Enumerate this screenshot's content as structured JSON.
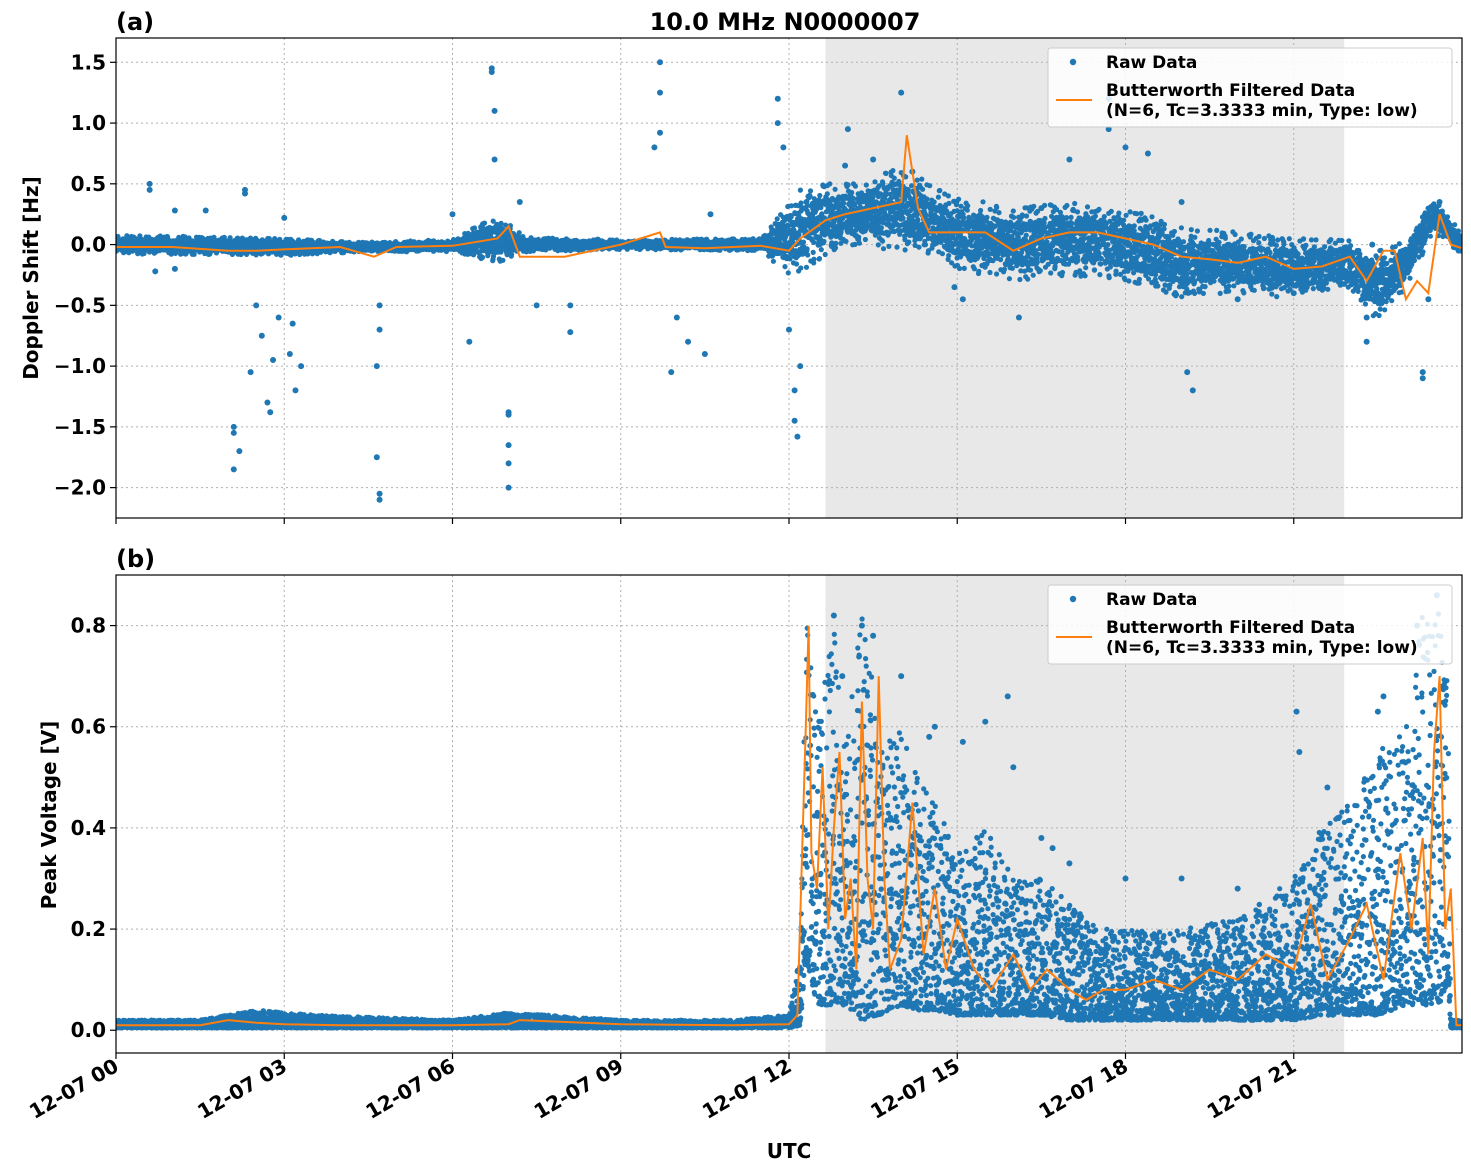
{
  "figure": {
    "title": "10.0 MHz N0000007",
    "xlabel": "UTC",
    "x_ticks": [
      "12-07 00",
      "12-07 03",
      "12-07 06",
      "12-07 09",
      "12-07 12",
      "12-07 15",
      "12-07 18",
      "12-07 21"
    ],
    "x_tick_hours": [
      0,
      3,
      6,
      9,
      12,
      15,
      18,
      21
    ],
    "xlim_hours": [
      0,
      24
    ],
    "shaded_span_hours": [
      12.65,
      21.9
    ],
    "colors": {
      "raw": "#1f77b4",
      "filtered": "#ff7f0e",
      "shade": "#e8e8e8"
    }
  },
  "chart_data": [
    {
      "type": "scatter",
      "panel_label": "(a)",
      "ylabel": "Doppler Shift [Hz]",
      "ylim": [
        -2.25,
        1.7
      ],
      "y_ticks": [
        1.5,
        1.0,
        0.5,
        0.0,
        -0.5,
        -1.0,
        -1.5,
        -2.0
      ],
      "y_tick_labels": [
        "1.5",
        "1.0",
        "0.5",
        "0.0",
        "−0.5",
        "−1.0",
        "−1.5",
        "−2.0"
      ],
      "grid": true,
      "legend_position": "top-right",
      "legend": [
        "Raw Data",
        "Butterworth Filtered Data",
        "(N=6, Tc=3.3333 min, Type: low)"
      ],
      "series": [
        {
          "name": "Raw Data",
          "style": "points",
          "band": {
            "x": [
              0,
              3,
              4.5,
              6,
              6.8,
              7.3,
              9,
              11.5,
              12,
              12.3,
              12.65,
              13,
              14,
              14.5,
              15,
              16,
              17,
              18,
              19,
              20,
              21,
              22,
              22.5,
              23,
              23.5,
              24
            ],
            "center": [
              0,
              -0.02,
              -0.02,
              -0.01,
              0.05,
              0,
              0,
              0,
              0.05,
              0.15,
              0.2,
              0.25,
              0.3,
              0.2,
              0.1,
              0,
              0.05,
              0.0,
              -0.15,
              -0.15,
              -0.2,
              -0.15,
              -0.35,
              -0.15,
              0.25,
              0
            ],
            "spread": [
              0.08,
              0.07,
              0.04,
              0.05,
              0.2,
              0.06,
              0.04,
              0.05,
              0.3,
              0.35,
              0.3,
              0.25,
              0.35,
              0.3,
              0.3,
              0.3,
              0.3,
              0.3,
              0.3,
              0.25,
              0.25,
              0.2,
              0.3,
              0.2,
              0.15,
              0.08
            ]
          },
          "outliers": [
            [
              0.6,
              0.5
            ],
            [
              0.6,
              0.45
            ],
            [
              0.7,
              -0.22
            ],
            [
              1.05,
              0.28
            ],
            [
              1.05,
              -0.2
            ],
            [
              1.6,
              0.28
            ],
            [
              2.1,
              -1.85
            ],
            [
              2.1,
              -1.55
            ],
            [
              2.1,
              -1.5
            ],
            [
              2.2,
              -1.7
            ],
            [
              2.3,
              0.42
            ],
            [
              2.3,
              0.45
            ],
            [
              2.4,
              -1.05
            ],
            [
              2.5,
              -0.5
            ],
            [
              2.6,
              -0.75
            ],
            [
              2.7,
              -1.3
            ],
            [
              2.8,
              -0.95
            ],
            [
              2.9,
              -0.6
            ],
            [
              3.0,
              0.22
            ],
            [
              3.1,
              -0.9
            ],
            [
              3.2,
              -1.2
            ],
            [
              3.3,
              -1.0
            ],
            [
              2.75,
              -1.38
            ],
            [
              3.15,
              -0.65
            ],
            [
              4.65,
              -1.75
            ],
            [
              4.7,
              -2.05
            ],
            [
              4.7,
              -2.1
            ],
            [
              4.65,
              -1.0
            ],
            [
              4.7,
              -0.7
            ],
            [
              4.7,
              -0.5
            ],
            [
              6.0,
              0.25
            ],
            [
              6.3,
              -0.8
            ],
            [
              6.7,
              1.45
            ],
            [
              6.7,
              1.42
            ],
            [
              6.75,
              1.1
            ],
            [
              6.75,
              0.7
            ],
            [
              7.0,
              -1.4
            ],
            [
              7.0,
              -1.65
            ],
            [
              7.0,
              -1.8
            ],
            [
              7.0,
              -2.0
            ],
            [
              7.0,
              -1.38
            ],
            [
              7.2,
              0.35
            ],
            [
              7.5,
              -0.5
            ],
            [
              8.1,
              -0.5
            ],
            [
              8.1,
              -0.72
            ],
            [
              9.7,
              1.5
            ],
            [
              9.7,
              1.25
            ],
            [
              9.7,
              0.92
            ],
            [
              9.6,
              0.8
            ],
            [
              9.9,
              -1.05
            ],
            [
              10.0,
              -0.6
            ],
            [
              10.2,
              -0.8
            ],
            [
              10.5,
              -0.9
            ],
            [
              10.6,
              0.25
            ],
            [
              11.8,
              1.2
            ],
            [
              11.8,
              1.0
            ],
            [
              11.9,
              0.8
            ],
            [
              12.1,
              -1.2
            ],
            [
              12.1,
              -1.45
            ],
            [
              12.15,
              -1.58
            ],
            [
              12.0,
              -0.7
            ],
            [
              12.2,
              -1.0
            ],
            [
              13.0,
              0.65
            ],
            [
              13.05,
              0.95
            ],
            [
              13.5,
              0.7
            ],
            [
              14.0,
              1.25
            ],
            [
              14.2,
              0.6
            ],
            [
              14.95,
              -0.35
            ],
            [
              15.1,
              -0.45
            ],
            [
              16.1,
              -0.6
            ],
            [
              16.5,
              0.3
            ],
            [
              17.0,
              0.7
            ],
            [
              17.7,
              1.2
            ],
            [
              17.7,
              0.95
            ],
            [
              18.0,
              0.8
            ],
            [
              18.4,
              0.75
            ],
            [
              19.0,
              0.35
            ],
            [
              19.1,
              -1.05
            ],
            [
              19.2,
              -1.2
            ],
            [
              20.0,
              -0.45
            ],
            [
              21.0,
              -0.4
            ],
            [
              22.3,
              -0.6
            ],
            [
              22.3,
              -0.8
            ],
            [
              22.4,
              0.0
            ],
            [
              23.3,
              -1.05
            ],
            [
              23.3,
              -1.1
            ],
            [
              23.4,
              -0.45
            ],
            [
              23.6,
              0.35
            ]
          ]
        },
        {
          "name": "Butterworth Filtered Data",
          "style": "line",
          "x": [
            0,
            1,
            2,
            2.5,
            3,
            4,
            4.6,
            5,
            6,
            6.8,
            7.0,
            7.2,
            8.0,
            9,
            9.7,
            9.8,
            10.5,
            11.5,
            12.0,
            12.2,
            12.5,
            12.65,
            13,
            13.5,
            14.0,
            14.1,
            14.3,
            14.5,
            15,
            15.5,
            16,
            16.5,
            17,
            17.5,
            18,
            18.5,
            19,
            19.5,
            20,
            20.5,
            21,
            21.5,
            22,
            22.3,
            22.6,
            22.8,
            23.0,
            23.2,
            23.4,
            23.6,
            23.8,
            24
          ],
          "y": [
            -0.02,
            -0.02,
            -0.05,
            -0.05,
            -0.04,
            -0.02,
            -0.1,
            -0.02,
            -0.01,
            0.05,
            0.15,
            -0.1,
            -0.1,
            0.0,
            0.1,
            -0.02,
            -0.03,
            -0.01,
            -0.05,
            0.05,
            0.15,
            0.2,
            0.25,
            0.3,
            0.35,
            0.9,
            0.3,
            0.1,
            0.1,
            0.1,
            -0.05,
            0.05,
            0.1,
            0.1,
            0.05,
            0.0,
            -0.1,
            -0.12,
            -0.15,
            -0.1,
            -0.2,
            -0.18,
            -0.1,
            -0.3,
            -0.05,
            -0.05,
            -0.45,
            -0.3,
            -0.4,
            0.25,
            0.0,
            -0.03
          ]
        }
      ]
    },
    {
      "type": "scatter",
      "panel_label": "(b)",
      "ylabel": "Peak Voltage [V]",
      "ylim": [
        -0.045,
        0.9
      ],
      "y_ticks": [
        0.0,
        0.2,
        0.4,
        0.6,
        0.8
      ],
      "y_tick_labels": [
        "0.0",
        "0.2",
        "0.4",
        "0.6",
        "0.8"
      ],
      "grid": true,
      "legend_position": "top-right",
      "legend": [
        "Raw Data",
        "Butterworth Filtered Data",
        "(N=6, Tc=3.3333 min, Type: low)"
      ],
      "series": [
        {
          "name": "Raw Data",
          "style": "points",
          "band": {
            "x": [
              0,
              1.5,
              2.5,
              3.5,
              6,
              7,
              9,
              11,
              12.0,
              12.2,
              12.3,
              12.5,
              12.8,
              13.0,
              13.3,
              13.6,
              14.0,
              14.3,
              14.6,
              15,
              15.5,
              16,
              16.5,
              17,
              17.5,
              18,
              19,
              20,
              21,
              21.5,
              22,
              22.5,
              23,
              23.3,
              23.6,
              23.75,
              23.8,
              24
            ],
            "low": [
              0.005,
              0.005,
              0.005,
              0.005,
              0.005,
              0.005,
              0.005,
              0.005,
              0.005,
              0.01,
              0.15,
              0.05,
              0.05,
              0.05,
              0.02,
              0.03,
              0.05,
              0.04,
              0.04,
              0.03,
              0.03,
              0.03,
              0.03,
              0.02,
              0.02,
              0.02,
              0.02,
              0.02,
              0.02,
              0.03,
              0.03,
              0.03,
              0.05,
              0.05,
              0.05,
              0.1,
              0.005,
              0.005
            ],
            "high": [
              0.02,
              0.02,
              0.04,
              0.03,
              0.02,
              0.035,
              0.02,
              0.02,
              0.03,
              0.15,
              0.84,
              0.6,
              0.8,
              0.55,
              0.84,
              0.6,
              0.6,
              0.5,
              0.45,
              0.35,
              0.4,
              0.3,
              0.3,
              0.25,
              0.2,
              0.2,
              0.2,
              0.22,
              0.3,
              0.4,
              0.45,
              0.55,
              0.6,
              0.85,
              0.85,
              0.7,
              0.02,
              0.02
            ]
          },
          "outliers": [
            [
              12.8,
              0.82
            ],
            [
              13.3,
              0.8
            ],
            [
              14.5,
              0.58
            ],
            [
              14.6,
              0.6
            ],
            [
              15.1,
              0.57
            ],
            [
              15.5,
              0.61
            ],
            [
              16.0,
              0.52
            ],
            [
              16.5,
              0.38
            ],
            [
              16.7,
              0.36
            ],
            [
              17.0,
              0.33
            ],
            [
              18.0,
              0.3
            ],
            [
              19.0,
              0.3
            ],
            [
              20.0,
              0.28
            ],
            [
              21.05,
              0.63
            ],
            [
              21.1,
              0.55
            ],
            [
              21.6,
              0.48
            ],
            [
              22.5,
              0.63
            ],
            [
              22.6,
              0.66
            ],
            [
              15.9,
              0.66
            ],
            [
              14.0,
              0.7
            ],
            [
              12.95,
              0.7
            ],
            [
              13.5,
              0.78
            ],
            [
              23.55,
              0.86
            ],
            [
              23.2,
              0.8
            ]
          ]
        },
        {
          "name": "Butterworth Filtered Data",
          "style": "line",
          "x": [
            0,
            1.5,
            2.0,
            2.5,
            3.0,
            4,
            6,
            7,
            7.2,
            9,
            11,
            12.0,
            12.15,
            12.3,
            12.35,
            12.4,
            12.5,
            12.6,
            12.7,
            12.8,
            12.9,
            13.0,
            13.1,
            13.2,
            13.3,
            13.4,
            13.5,
            13.6,
            13.7,
            13.8,
            14.0,
            14.2,
            14.4,
            14.6,
            14.8,
            15.0,
            15.3,
            15.6,
            16.0,
            16.3,
            16.6,
            17.0,
            17.3,
            17.6,
            18.0,
            18.5,
            19.0,
            19.5,
            20.0,
            20.5,
            21.0,
            21.3,
            21.6,
            22.0,
            22.3,
            22.6,
            22.9,
            23.1,
            23.3,
            23.4,
            23.5,
            23.6,
            23.7,
            23.8,
            23.9,
            24
          ],
          "y": [
            0.01,
            0.01,
            0.02,
            0.015,
            0.012,
            0.01,
            0.01,
            0.012,
            0.02,
            0.012,
            0.01,
            0.012,
            0.03,
            0.6,
            0.8,
            0.35,
            0.28,
            0.52,
            0.2,
            0.4,
            0.55,
            0.22,
            0.3,
            0.12,
            0.65,
            0.3,
            0.2,
            0.7,
            0.3,
            0.12,
            0.18,
            0.45,
            0.15,
            0.28,
            0.12,
            0.22,
            0.12,
            0.08,
            0.15,
            0.08,
            0.12,
            0.08,
            0.06,
            0.08,
            0.08,
            0.1,
            0.08,
            0.12,
            0.1,
            0.15,
            0.12,
            0.25,
            0.1,
            0.18,
            0.25,
            0.1,
            0.35,
            0.2,
            0.38,
            0.15,
            0.55,
            0.7,
            0.2,
            0.28,
            0.01,
            0.01
          ]
        }
      ]
    }
  ]
}
